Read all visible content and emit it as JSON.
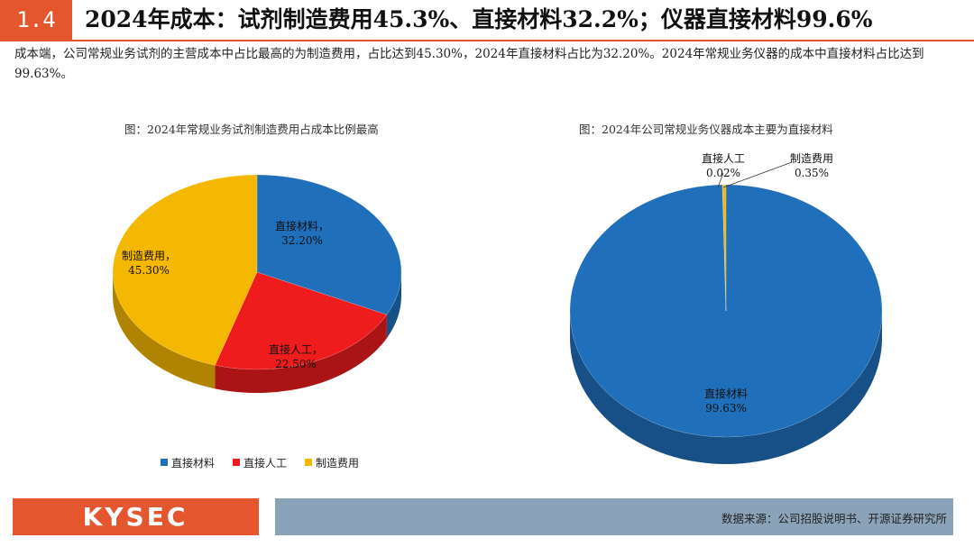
{
  "header": {
    "section_number": "1.4",
    "title": "2024年成本：试剂制造费用45.3%、直接材料32.2%；仪器直接材料99.6%",
    "accent_color": "#e4572e"
  },
  "intro_text": "成本端，公司常规业务试剂的主营成本中占比最高的为制造费用，占比达到45.30%，2024年直接材料占比为32.20%。2024年常规业务仪器的成本中直接材料占比达到99.63%。",
  "chart_data": [
    {
      "type": "pie",
      "title": "图：2024年常规业务试剂制造费用占成本比例最高",
      "slices": [
        {
          "name": "直接材料",
          "value": 32.2,
          "label": "32.20%",
          "color": "#1f6fba"
        },
        {
          "name": "直接人工",
          "value": 22.5,
          "label": "22.50%",
          "color": "#ee1c1c"
        },
        {
          "name": "制造费用",
          "value": 45.3,
          "label": "45.30%",
          "color": "#f5b800"
        }
      ]
    },
    {
      "type": "pie",
      "title": "图：2024年公司常规业务仪器成本主要为直接材料",
      "slices": [
        {
          "name": "直接材料",
          "value": 99.63,
          "label": "99.63%",
          "color": "#1f6fba"
        },
        {
          "name": "直接人工",
          "value": 0.02,
          "label": "0.02%",
          "color": "#ee1c1c"
        },
        {
          "name": "制造费用",
          "value": 0.35,
          "label": "0.35%",
          "color": "#f5b800"
        }
      ]
    }
  ],
  "legend": [
    {
      "label": "直接材料",
      "color": "#1f6fba"
    },
    {
      "label": "直接人工",
      "color": "#ee1c1c"
    },
    {
      "label": "制造费用",
      "color": "#f5b800"
    }
  ],
  "footer": {
    "logo": "KYSEC",
    "source": "数据来源：公司招股说明书、开源证券研究所"
  }
}
